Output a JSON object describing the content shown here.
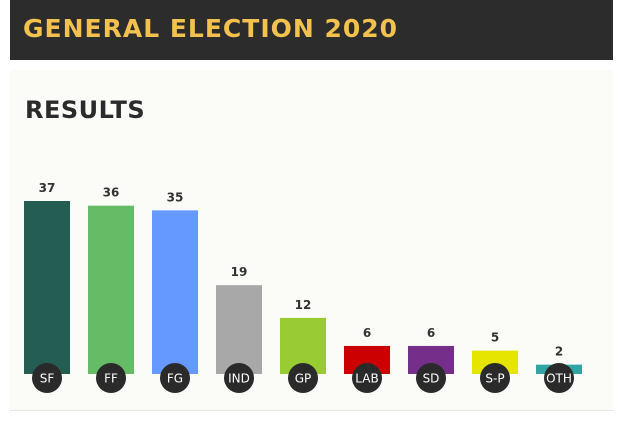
{
  "header": {
    "title": "GENERAL ELECTION 2020",
    "title_color": "#f2c14e",
    "background": "#2c2c2c"
  },
  "panel": {
    "title": "RESULTS"
  },
  "chart_data": {
    "type": "bar",
    "categories": [
      "SF",
      "FF",
      "FG",
      "IND",
      "GP",
      "LAB",
      "SD",
      "S-P",
      "OTH"
    ],
    "values": [
      37,
      36,
      35,
      19,
      12,
      6,
      6,
      5,
      2
    ],
    "colors": [
      "#245e52",
      "#66bb66",
      "#6699ff",
      "#a8a8a8",
      "#99cc33",
      "#cc0000",
      "#752f8a",
      "#e5e500",
      "#33a3a3"
    ],
    "data_labels": [
      "37",
      "36",
      "35",
      "19",
      "12",
      "6",
      "6",
      "5",
      "2"
    ],
    "title": "",
    "xlabel": "",
    "ylabel": "",
    "ylim": [
      0,
      37
    ],
    "grid": false,
    "legend": "none"
  }
}
